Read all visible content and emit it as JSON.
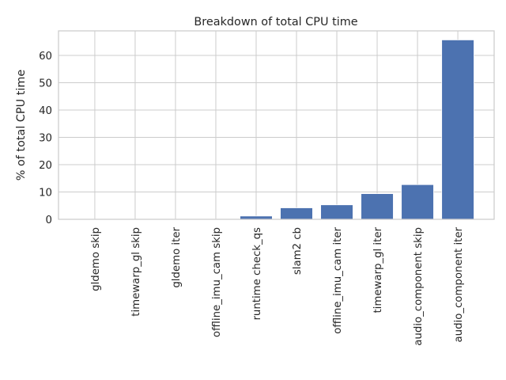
{
  "chart_data": {
    "type": "bar",
    "title": "Breakdown of total CPU time",
    "xlabel": "",
    "ylabel": "% of total CPU time",
    "categories": [
      "gldemo skip",
      "timewarp_gl skip",
      "gldemo iter",
      "offline_imu_cam skip",
      "runtime check_qs",
      "slam2 cb",
      "offline_imu_cam iter",
      "timewarp_gl iter",
      "audio_component skip",
      "audio_component iter"
    ],
    "values": [
      0.05,
      0.05,
      0.1,
      0.1,
      1.2,
      4.2,
      5.3,
      9.4,
      12.7,
      65.7
    ],
    "ylim": [
      0,
      69
    ],
    "yticks": [
      0,
      10,
      20,
      30,
      40,
      50,
      60
    ],
    "grid": true,
    "legend": "none",
    "colors": {
      "bar": "#4c72b0",
      "grid": "#cccccc",
      "axes_edge": "#cccccc",
      "text": "#262626"
    }
  }
}
